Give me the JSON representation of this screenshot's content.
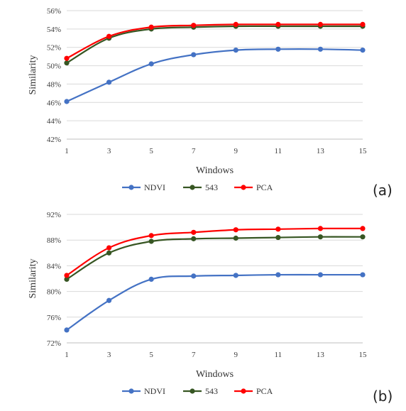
{
  "chart_data": [
    {
      "type": "line",
      "panel_label": "(a)",
      "xlabel": "Windows",
      "ylabel": "Similarity",
      "x": [
        1,
        3,
        5,
        7,
        9,
        11,
        13,
        15
      ],
      "xticks": [
        "1",
        "3",
        "5",
        "7",
        "9",
        "11",
        "13",
        "15"
      ],
      "ylim": [
        42,
        56
      ],
      "yticks": [
        42,
        44,
        46,
        48,
        50,
        52,
        54,
        56
      ],
      "ytick_labels": [
        "42%",
        "44%",
        "46%",
        "48%",
        "50%",
        "52%",
        "54%",
        "56%"
      ],
      "grid": true,
      "legend_position": "bottom",
      "series": [
        {
          "name": "NDVI",
          "color": "#4472c4",
          "values": [
            46.1,
            48.2,
            50.2,
            51.2,
            51.7,
            51.8,
            51.8,
            51.7
          ]
        },
        {
          "name": "543",
          "color": "#375623",
          "values": [
            50.3,
            53.0,
            54.0,
            54.2,
            54.3,
            54.3,
            54.3,
            54.3
          ]
        },
        {
          "name": "PCA",
          "color": "#ff0000",
          "values": [
            50.8,
            53.2,
            54.2,
            54.4,
            54.5,
            54.5,
            54.5,
            54.5
          ]
        }
      ]
    },
    {
      "type": "line",
      "panel_label": "(b)",
      "xlabel": "Windows",
      "ylabel": "Similarity",
      "x": [
        1,
        3,
        5,
        7,
        9,
        11,
        13,
        15
      ],
      "xticks": [
        "1",
        "3",
        "5",
        "7",
        "9",
        "11",
        "13",
        "15"
      ],
      "ylim": [
        72,
        92
      ],
      "yticks": [
        72,
        76,
        80,
        84,
        88,
        92
      ],
      "ytick_labels": [
        "72%",
        "76%",
        "80%",
        "84%",
        "88%",
        "92%"
      ],
      "grid": true,
      "legend_position": "bottom",
      "series": [
        {
          "name": "NDVI",
          "color": "#4472c4",
          "values": [
            74.0,
            78.6,
            81.9,
            82.4,
            82.5,
            82.6,
            82.6,
            82.6
          ]
        },
        {
          "name": "543",
          "color": "#375623",
          "values": [
            81.9,
            86.0,
            87.8,
            88.2,
            88.3,
            88.4,
            88.5,
            88.5
          ]
        },
        {
          "name": "PCA",
          "color": "#ff0000",
          "values": [
            82.5,
            86.8,
            88.7,
            89.2,
            89.6,
            89.7,
            89.8,
            89.8
          ]
        }
      ]
    }
  ]
}
